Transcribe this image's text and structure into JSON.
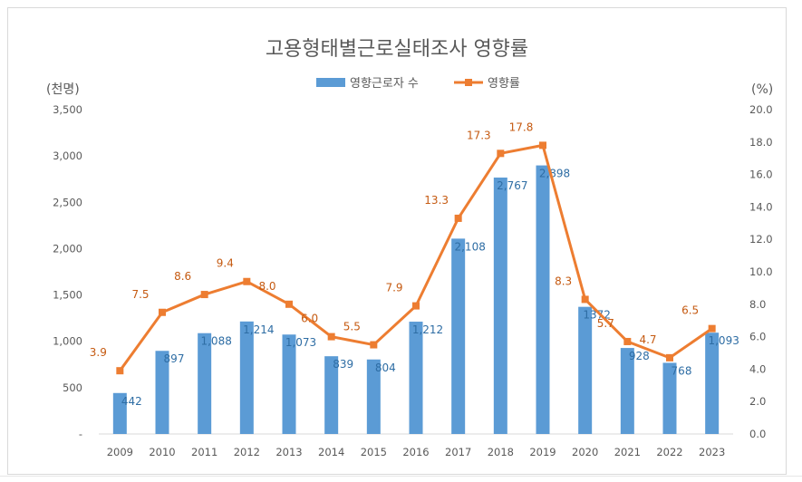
{
  "chart_data": {
    "type": "bar+line",
    "title": "고용형태별근로실태조사  영향률",
    "left_unit": "(천명)",
    "right_unit": "(%)",
    "categories": [
      "2009",
      "2010",
      "2011",
      "2012",
      "2013",
      "2014",
      "2015",
      "2016",
      "2017",
      "2018",
      "2019",
      "2020",
      "2021",
      "2022",
      "2023"
    ],
    "bar_series": {
      "name": "영향근로자 수",
      "color": "#5b9bd5",
      "values": [
        442,
        897,
        1088,
        1214,
        1073,
        839,
        804,
        1212,
        2108,
        2767,
        2898,
        1372,
        928,
        768,
        1093
      ],
      "labels": [
        "442",
        "897",
        "1,088",
        "1,214",
        "1,073",
        "839",
        "804",
        "1,212",
        "2,108",
        "2,767",
        "2,898",
        "1372",
        "928",
        "768",
        "1,093"
      ]
    },
    "line_series": {
      "name": "영향률",
      "color": "#ed7d31",
      "values": [
        3.9,
        7.5,
        8.6,
        9.4,
        8.0,
        6.0,
        5.5,
        7.9,
        13.3,
        17.3,
        17.8,
        8.3,
        5.7,
        4.7,
        6.5
      ],
      "labels": [
        "3.9",
        "7.5",
        "8.6",
        "9.4",
        "8.0",
        "6.0",
        "5.5",
        "7.9",
        "13.3",
        "17.3",
        "17.8",
        "8.3",
        "5.7",
        "4.7",
        "6.5"
      ]
    },
    "y_left": {
      "min": 0,
      "max": 3500,
      "step": 500,
      "tick_labels": [
        "-",
        "500",
        "1,000",
        "1,500",
        "2,000",
        "2,500",
        "3,000",
        "3,500"
      ]
    },
    "y_right": {
      "min": 0,
      "max": 20,
      "step": 2,
      "tick_labels": [
        "0.0",
        "2.0",
        "4.0",
        "6.0",
        "8.0",
        "10.0",
        "12.0",
        "14.0",
        "16.0",
        "18.0",
        "20.0"
      ]
    },
    "grid": false,
    "legend_position": "top-center"
  }
}
